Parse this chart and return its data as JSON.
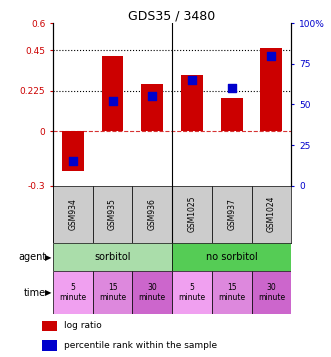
{
  "title": "GDS35 / 3480",
  "samples": [
    "GSM934",
    "GSM935",
    "GSM936",
    "GSM1025",
    "GSM937",
    "GSM1024"
  ],
  "log_ratios": [
    -0.22,
    0.42,
    0.265,
    0.315,
    0.185,
    0.465
  ],
  "percentile_ranks": [
    15,
    52,
    55,
    65,
    60,
    80
  ],
  "ylim_left": [
    -0.3,
    0.6
  ],
  "ylim_right": [
    0,
    100
  ],
  "yticks_left": [
    -0.3,
    0,
    0.225,
    0.45,
    0.6
  ],
  "yticks_right": [
    0,
    25,
    50,
    75,
    100
  ],
  "ytick_labels_left": [
    "-0.3",
    "0",
    "0.225",
    "0.45",
    "0.6"
  ],
  "ytick_labels_right": [
    "0",
    "25",
    "50",
    "75",
    "100%"
  ],
  "hlines_dotted": [
    0.225,
    0.45
  ],
  "hline_dashed": 0,
  "bar_color": "#cc0000",
  "dot_color": "#0000cc",
  "agent_labels": [
    "sorbitol",
    "no sorbitol"
  ],
  "agent_color_sorbitol": "#aaddaa",
  "agent_color_no_sorbitol": "#55cc55",
  "time_colors": [
    "#f0a0f0",
    "#dd88dd",
    "#cc66cc",
    "#f0a0f0",
    "#dd88dd",
    "#cc66cc"
  ],
  "time_labels": [
    "5\nminute",
    "15\nminute",
    "30\nminute",
    "5\nminute",
    "15\nminute",
    "30\nminute"
  ],
  "gsm_color": "#cccccc",
  "legend_bar_label": "log ratio",
  "legend_dot_label": "percentile rank within the sample",
  "left_label_color": "#cc0000",
  "right_label_color": "#0000cc",
  "bar_width": 0.55,
  "dot_size": 30
}
